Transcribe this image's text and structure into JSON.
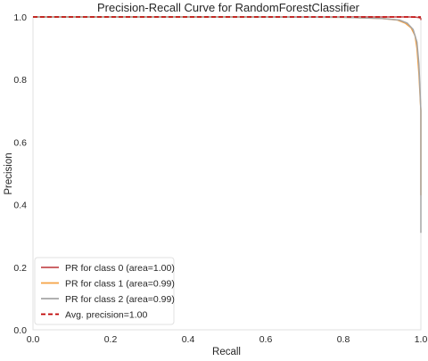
{
  "chart_data": {
    "type": "line",
    "title": "Precision-Recall Curve for RandomForestClassifier",
    "xlabel": "Recall",
    "ylabel": "Precision",
    "xlim": [
      0.0,
      1.0
    ],
    "ylim": [
      0.0,
      1.0
    ],
    "xticks": [
      "0.0",
      "0.2",
      "0.4",
      "0.6",
      "0.8",
      "1.0"
    ],
    "yticks": [
      "0.0",
      "0.2",
      "0.4",
      "0.6",
      "0.8",
      "1.0"
    ],
    "grid": false,
    "legend_position": "lower-left",
    "series": [
      {
        "name": "PR for class 0 (area=1.00)",
        "color": "#c44e52",
        "style": "solid",
        "x": [
          0.0,
          0.5,
          0.9,
          0.97,
          0.99,
          0.995,
          1.0,
          1.0
        ],
        "y": [
          1.0,
          1.0,
          1.0,
          1.0,
          0.999,
          0.998,
          0.995,
          0.99
        ]
      },
      {
        "name": "PR for class 1 (area=0.99)",
        "color": "#f5a143",
        "style": "solid",
        "x": [
          0.0,
          0.5,
          0.8,
          0.9,
          0.94,
          0.96,
          0.975,
          0.985,
          0.99,
          0.995,
          1.0,
          1.0,
          1.0
        ],
        "y": [
          1.0,
          1.0,
          0.999,
          0.995,
          0.99,
          0.98,
          0.965,
          0.94,
          0.9,
          0.82,
          0.7,
          0.5,
          0.43
        ]
      },
      {
        "name": "PR for class 2 (area=0.99)",
        "color": "#a6a6a6",
        "style": "solid",
        "x": [
          0.0,
          0.5,
          0.8,
          0.9,
          0.945,
          0.965,
          0.98,
          0.99,
          0.995,
          1.0,
          1.0,
          1.0
        ],
        "y": [
          1.0,
          1.0,
          0.999,
          0.995,
          0.99,
          0.98,
          0.96,
          0.92,
          0.85,
          0.7,
          0.45,
          0.31
        ]
      },
      {
        "name": "Avg. precision=1.00",
        "color": "#c00000",
        "style": "dashed",
        "x": [
          0.0,
          1.0
        ],
        "y": [
          1.0,
          1.0
        ]
      }
    ]
  }
}
